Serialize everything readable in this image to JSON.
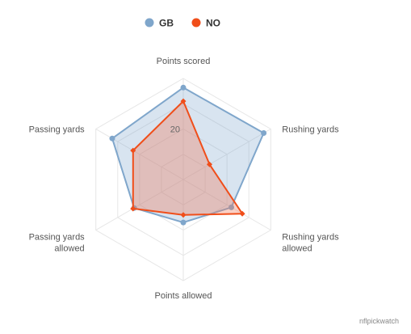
{
  "chart_data": {
    "type": "radar",
    "axes": [
      "Points scored",
      "Rushing yards",
      "Rushing yards allowed",
      "Points allowed",
      "Passing yards allowed",
      "Passing yards"
    ],
    "axis_label_lines": [
      [
        "Points scored"
      ],
      [
        "Rushing yards"
      ],
      [
        "Rushing yards",
        "allowed"
      ],
      [
        "Points allowed"
      ],
      [
        "Passing yards",
        "allowed"
      ],
      [
        "Passing yards"
      ]
    ],
    "range": [
      0,
      40
    ],
    "grid_rings": [
      10,
      20,
      30,
      40
    ],
    "tick_labels": [
      "20"
    ],
    "legend_position": "top-center",
    "series": [
      {
        "name": "GB",
        "color": "#7fa6cb",
        "fill": "rgba(127,166,205,0.3)",
        "values": [
          36.4,
          36.8,
          22.0,
          17.0,
          22.5,
          32.5
        ]
      },
      {
        "name": "NO",
        "color": "#f04e1a",
        "fill": "rgba(240,120,90,0.35)",
        "values": [
          31.0,
          12.0,
          27.0,
          14.0,
          23.0,
          23.0
        ]
      }
    ]
  },
  "credit": "nflpickwatch"
}
